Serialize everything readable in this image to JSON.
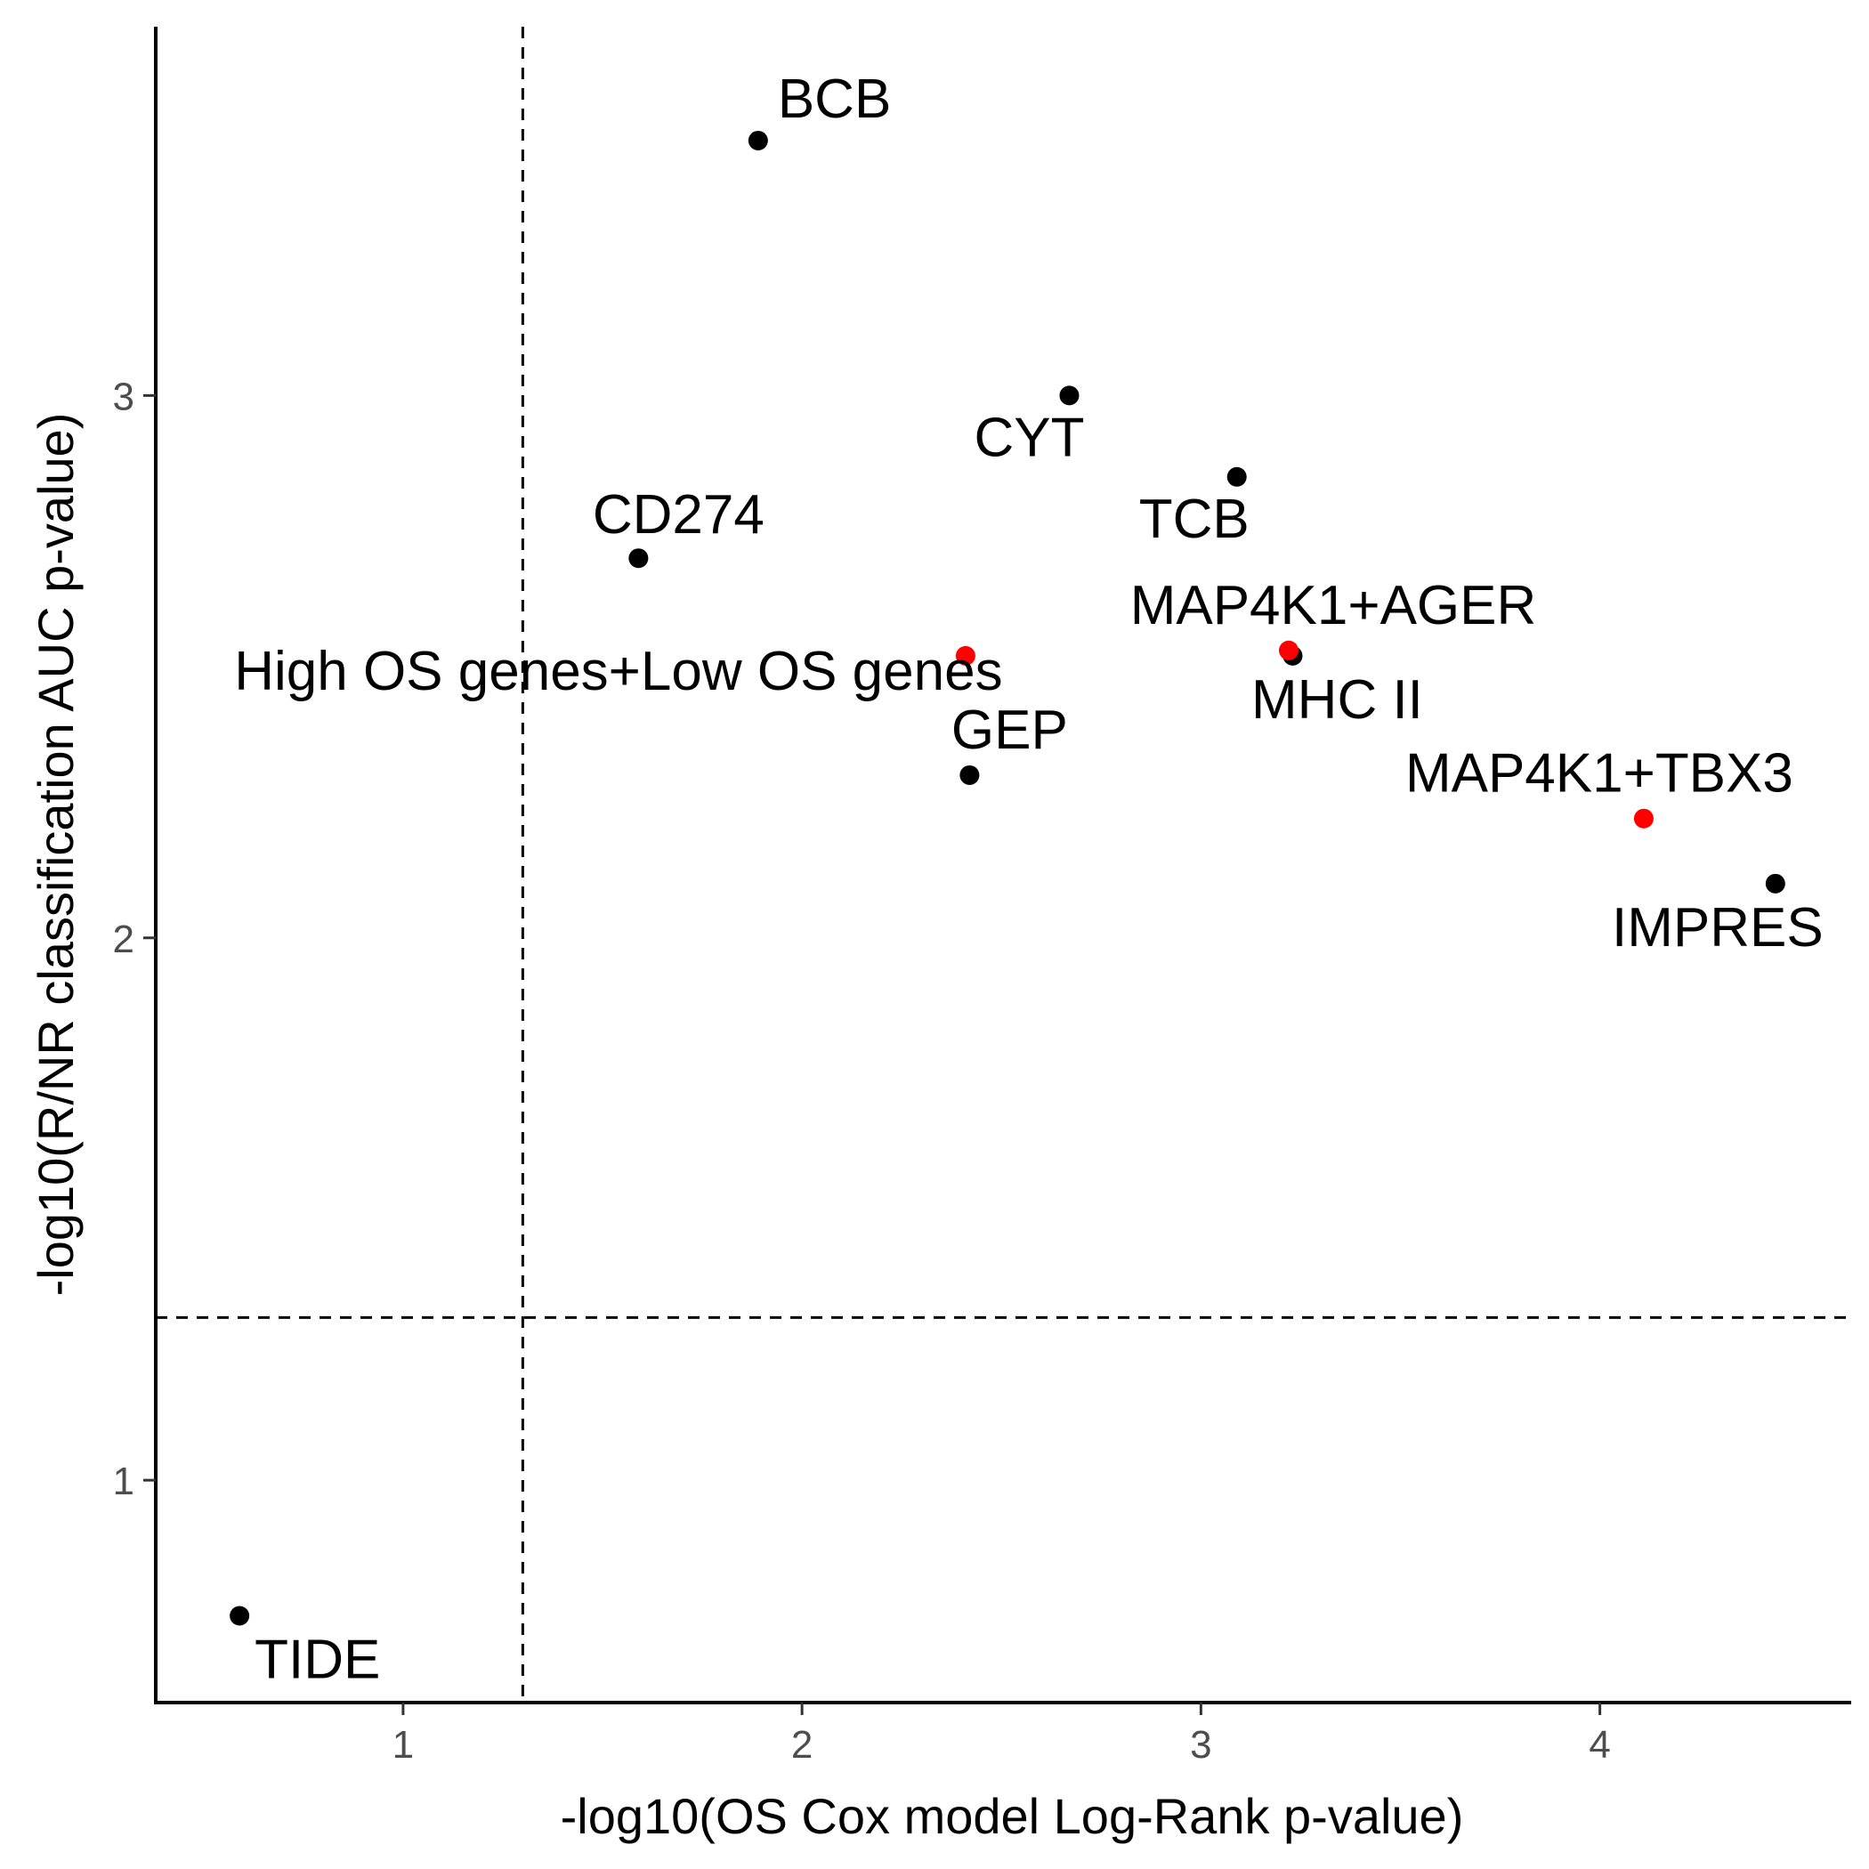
{
  "chart_data": {
    "type": "scatter",
    "xlabel": "-log10(OS Cox model Log-Rank p-value)",
    "ylabel": "-log10(R/NR classification AUC p-value)",
    "xlim": [
      0.38,
      4.63
    ],
    "ylim": [
      0.59,
      3.68
    ],
    "x_ticks": [
      1,
      2,
      3,
      4
    ],
    "y_ticks": [
      1,
      2,
      3
    ],
    "reference_lines": {
      "x": 1.3,
      "y": 1.3,
      "style": "dashed"
    },
    "grid": false,
    "colors": {
      "default": "#000000",
      "highlight": "#ff0000"
    },
    "points": [
      {
        "label": "BCB",
        "x": 1.89,
        "y": 3.47,
        "color": "#000000"
      },
      {
        "label": "CYT",
        "x": 2.67,
        "y": 3.0,
        "color": "#000000"
      },
      {
        "label": "TCB",
        "x": 3.09,
        "y": 2.85,
        "color": "#000000"
      },
      {
        "label": "CD274",
        "x": 1.59,
        "y": 2.7,
        "color": "#000000"
      },
      {
        "label": "MHC II",
        "x": 3.23,
        "y": 2.52,
        "color": "#000000"
      },
      {
        "label": "MAP4K1+AGER",
        "x": 3.22,
        "y": 2.53,
        "color": "#ff0000"
      },
      {
        "label": "High OS genes+Low OS genes",
        "x": 2.41,
        "y": 2.52,
        "color": "#ff0000"
      },
      {
        "label": "GEP",
        "x": 2.42,
        "y": 2.3,
        "color": "#000000"
      },
      {
        "label": "MAP4K1+TBX3",
        "x": 4.11,
        "y": 2.22,
        "color": "#ff0000"
      },
      {
        "label": "IMPRES",
        "x": 4.44,
        "y": 2.1,
        "color": "#000000"
      },
      {
        "label": "TIDE",
        "x": 0.59,
        "y": 0.75,
        "color": "#000000"
      }
    ]
  }
}
